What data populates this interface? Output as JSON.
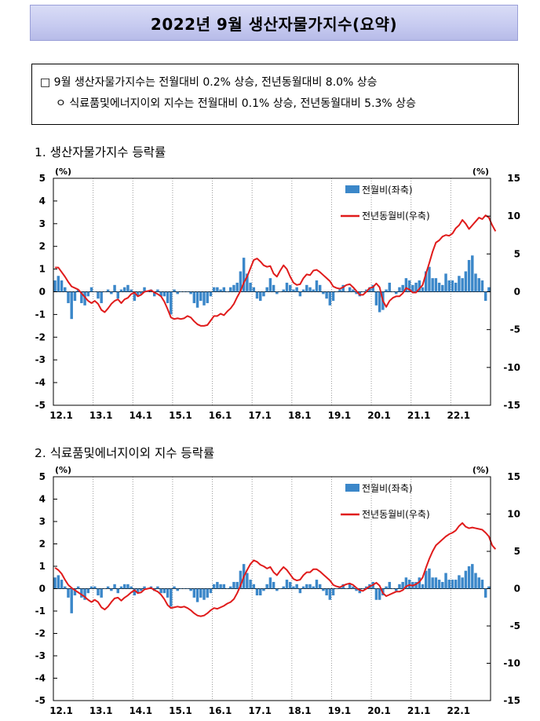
{
  "title": "2022년  9월  생산자물가지수(요약)",
  "summary": {
    "line1": "□ 9월 생산자물가지수는 전월대비 0.2% 상승, 전년동월대비 8.0% 상승",
    "line2": "ㅇ 식료품및에너지이외 지수는 전월대비 0.1% 상승, 전년동월대비 5.3% 상승"
  },
  "chart_data": [
    {
      "type": "bar",
      "title": "1. 생산자물가지수 등락률",
      "left_unit": "(%)",
      "right_unit": "(%)",
      "x_ticks": [
        "12.1",
        "13.1",
        "14.1",
        "15.1",
        "16.1",
        "17.1",
        "18.1",
        "19.1",
        "20.1",
        "21.1",
        "22.1"
      ],
      "ylim_left": [
        -5,
        5
      ],
      "ylim_right": [
        -15,
        15
      ],
      "yticks_left": [
        5,
        4,
        3,
        2,
        1,
        0,
        -1,
        -2,
        -3,
        -4,
        -5
      ],
      "yticks_right": [
        15,
        10,
        5,
        0,
        -5,
        -10,
        -15
      ],
      "grid": "vertical dotted",
      "legend": "top-right",
      "series": [
        {
          "name": "전월비(좌축)",
          "axis": "left",
          "kind": "bar",
          "color": "#3b87c9",
          "values": [
            0.5,
            0.7,
            0.5,
            0.2,
            -0.5,
            -1.2,
            -0.4,
            0.1,
            -0.5,
            -0.6,
            -0.2,
            0.2,
            0.0,
            -0.3,
            -0.5,
            0.0,
            0.1,
            -0.1,
            0.3,
            -0.3,
            0.1,
            0.2,
            0.3,
            0.1,
            -0.4,
            -0.2,
            -0.1,
            0.2,
            0.0,
            0.1,
            -0.2,
            0.1,
            -0.2,
            -0.2,
            -0.5,
            -1.0,
            0.1,
            -0.1,
            0.0,
            0.0,
            0.0,
            -0.1,
            -0.5,
            -0.7,
            -0.4,
            -0.6,
            -0.5,
            -0.2,
            0.2,
            0.2,
            0.1,
            0.2,
            0.0,
            0.2,
            0.3,
            0.4,
            0.9,
            1.5,
            0.8,
            0.4,
            0.2,
            -0.3,
            -0.4,
            -0.2,
            0.2,
            0.6,
            0.3,
            -0.1,
            0.0,
            0.1,
            0.4,
            0.3,
            0.1,
            0.2,
            -0.2,
            0.1,
            0.3,
            0.2,
            0.1,
            0.5,
            0.3,
            -0.1,
            -0.3,
            -0.6,
            -0.4,
            0.0,
            0.1,
            0.3,
            0.0,
            0.2,
            0.1,
            -0.1,
            -0.2,
            0.0,
            0.1,
            0.2,
            0.3,
            -0.6,
            -0.9,
            -0.8,
            0.1,
            0.4,
            0.0,
            -0.1,
            0.2,
            0.3,
            0.6,
            0.5,
            0.3,
            0.4,
            0.5,
            0.2,
            0.9,
            1.1,
            0.6,
            0.6,
            0.4,
            0.3,
            0.8,
            0.5,
            0.5,
            0.4,
            0.7,
            0.6,
            0.9,
            1.4,
            1.6,
            0.8,
            0.6,
            0.5,
            -0.4,
            0.2
          ]
        },
        {
          "name": "전년동월비(우축)",
          "axis": "right",
          "kind": "line",
          "color": "#e01b1b",
          "values": [
            3.2,
            3.2,
            2.6,
            2.0,
            1.3,
            0.7,
            0.5,
            0.3,
            -0.2,
            -0.7,
            -1.2,
            -1.5,
            -1.2,
            -1.6,
            -2.4,
            -2.7,
            -2.2,
            -1.6,
            -1.2,
            -1.0,
            -1.5,
            -1.0,
            -0.8,
            -0.3,
            -0.1,
            -0.6,
            -0.4,
            0.0,
            0.1,
            0.2,
            -0.1,
            -0.3,
            -0.6,
            -1.3,
            -2.3,
            -3.4,
            -3.6,
            -3.5,
            -3.6,
            -3.5,
            -3.2,
            -3.4,
            -3.9,
            -4.3,
            -4.5,
            -4.5,
            -4.4,
            -3.8,
            -3.2,
            -3.2,
            -2.9,
            -3.1,
            -2.6,
            -2.2,
            -1.6,
            -0.7,
            0.1,
            1.2,
            2.0,
            3.1,
            4.2,
            4.4,
            4.0,
            3.5,
            3.3,
            3.4,
            2.4,
            2.0,
            2.8,
            3.5,
            3.0,
            2.0,
            1.2,
            0.9,
            1.0,
            1.8,
            2.3,
            2.2,
            2.8,
            2.9,
            2.6,
            2.2,
            1.8,
            1.4,
            0.7,
            0.5,
            0.4,
            0.6,
            0.9,
            1.0,
            0.6,
            0.1,
            -0.4,
            -0.4,
            0.0,
            0.5,
            0.6,
            1.1,
            0.6,
            -1.2,
            -2.0,
            -1.2,
            -0.8,
            -0.6,
            -0.6,
            -0.2,
            0.5,
            0.3,
            -0.1,
            -0.1,
            0.4,
            0.9,
            2.4,
            3.8,
            5.3,
            6.5,
            6.8,
            7.3,
            7.5,
            7.4,
            7.7,
            8.4,
            8.8,
            9.5,
            9.0,
            8.3,
            8.8,
            9.3,
            9.8,
            9.6,
            10.1,
            9.8,
            8.8,
            8.0
          ]
        }
      ]
    },
    {
      "type": "bar",
      "title": "2. 식료품및에너지이외 지수 등락률",
      "left_unit": "(%)",
      "right_unit": "(%)",
      "x_ticks": [
        "12.1",
        "13.1",
        "14.1",
        "15.1",
        "16.1",
        "17.1",
        "18.1",
        "19.1",
        "20.1",
        "21.1",
        "22.1"
      ],
      "ylim_left": [
        -5,
        5
      ],
      "ylim_right": [
        -15,
        15
      ],
      "yticks_left": [
        5,
        4,
        3,
        2,
        1,
        0,
        -1,
        -2,
        -3,
        -4,
        -5
      ],
      "yticks_right": [
        15,
        10,
        5,
        0,
        -5,
        -10,
        -15
      ],
      "grid": "vertical dotted",
      "legend": "top-right",
      "series": [
        {
          "name": "전월비(좌축)",
          "axis": "left",
          "kind": "bar",
          "color": "#3b87c9",
          "values": [
            0.5,
            0.6,
            0.4,
            0.1,
            -0.4,
            -1.1,
            -0.3,
            0.1,
            -0.4,
            -0.5,
            -0.2,
            0.1,
            0.1,
            -0.3,
            -0.4,
            0.0,
            0.1,
            -0.1,
            0.2,
            -0.2,
            0.1,
            0.2,
            0.2,
            0.1,
            -0.3,
            -0.2,
            -0.1,
            0.1,
            0.0,
            0.1,
            -0.1,
            0.1,
            -0.2,
            -0.2,
            -0.4,
            -0.8,
            0.1,
            -0.1,
            0.0,
            0.0,
            0.0,
            -0.1,
            -0.4,
            -0.6,
            -0.4,
            -0.5,
            -0.4,
            -0.2,
            0.2,
            0.3,
            0.2,
            0.2,
            0.0,
            0.1,
            0.3,
            0.3,
            0.8,
            1.1,
            0.7,
            0.4,
            0.2,
            -0.3,
            -0.3,
            -0.1,
            0.2,
            0.5,
            0.3,
            -0.1,
            0.0,
            0.1,
            0.4,
            0.3,
            0.1,
            0.2,
            -0.2,
            0.1,
            0.2,
            0.2,
            0.1,
            0.4,
            0.2,
            -0.1,
            -0.3,
            -0.5,
            -0.3,
            0.0,
            0.1,
            0.2,
            0.0,
            0.2,
            0.1,
            -0.1,
            -0.2,
            0.0,
            0.1,
            0.2,
            0.3,
            -0.5,
            -0.5,
            -0.3,
            0.1,
            0.3,
            0.0,
            -0.1,
            0.2,
            0.3,
            0.5,
            0.4,
            0.3,
            0.3,
            0.5,
            0.2,
            0.8,
            0.9,
            0.5,
            0.5,
            0.4,
            0.3,
            0.7,
            0.4,
            0.4,
            0.4,
            0.6,
            0.5,
            0.8,
            1.0,
            1.1,
            0.7,
            0.5,
            0.4,
            -0.4,
            0.1
          ]
        },
        {
          "name": "전년동월비(우축)",
          "axis": "right",
          "kind": "line",
          "color": "#e01b1b",
          "values": [
            2.8,
            2.5,
            2.0,
            1.2,
            0.5,
            0.1,
            -0.2,
            -0.5,
            -0.8,
            -1.1,
            -1.5,
            -1.8,
            -1.5,
            -1.8,
            -2.5,
            -2.8,
            -2.4,
            -1.8,
            -1.3,
            -1.2,
            -1.6,
            -1.2,
            -0.9,
            -0.5,
            -0.2,
            -0.6,
            -0.5,
            -0.1,
            0.0,
            0.1,
            -0.2,
            -0.4,
            -0.8,
            -1.4,
            -2.2,
            -2.6,
            -2.5,
            -2.4,
            -2.5,
            -2.4,
            -2.6,
            -2.9,
            -3.3,
            -3.6,
            -3.7,
            -3.6,
            -3.3,
            -2.9,
            -2.6,
            -2.7,
            -2.5,
            -2.3,
            -2.0,
            -1.8,
            -1.4,
            -0.6,
            0.4,
            1.6,
            2.5,
            3.3,
            3.8,
            3.6,
            3.2,
            3.0,
            2.7,
            2.9,
            2.2,
            1.8,
            2.4,
            2.9,
            2.5,
            1.9,
            1.3,
            1.1,
            1.2,
            1.8,
            2.2,
            2.2,
            2.6,
            2.6,
            2.3,
            1.9,
            1.5,
            1.1,
            0.5,
            0.3,
            0.2,
            0.4,
            0.6,
            0.7,
            0.5,
            0.1,
            -0.2,
            -0.3,
            0.0,
            0.3,
            0.5,
            0.8,
            0.4,
            -0.6,
            -1.0,
            -0.8,
            -0.6,
            -0.4,
            -0.4,
            -0.2,
            0.3,
            0.5,
            0.4,
            0.6,
            0.9,
            1.5,
            2.8,
            4.0,
            5.0,
            5.8,
            6.2,
            6.6,
            7.0,
            7.3,
            7.5,
            7.8,
            8.4,
            8.8,
            8.3,
            8.1,
            8.2,
            8.1,
            8.0,
            7.9,
            7.5,
            7.0,
            5.8,
            5.3
          ]
        }
      ]
    }
  ]
}
